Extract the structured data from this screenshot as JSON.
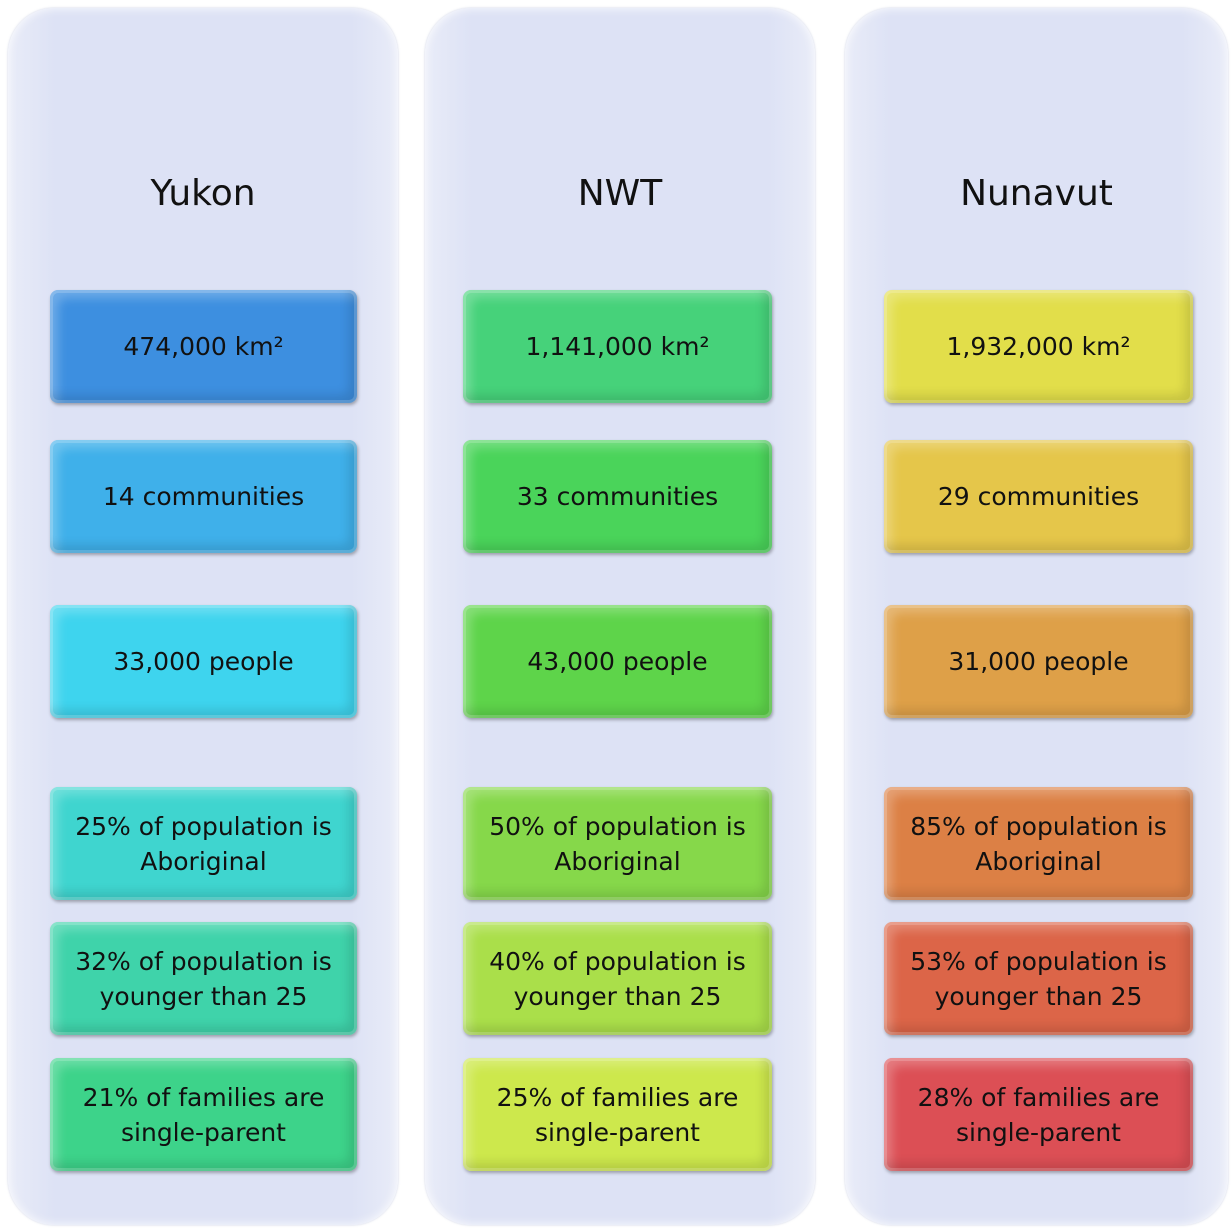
{
  "columns": [
    {
      "title": "Yukon",
      "boxes": [
        [
          "474,000 km²"
        ],
        [
          "14 communities"
        ],
        [
          "33,000 people"
        ],
        [
          "25% of population is",
          "Aboriginal"
        ],
        [
          "32% of population is",
          "younger than 25"
        ],
        [
          "21% of families are",
          "single-parent"
        ]
      ]
    },
    {
      "title": "NWT",
      "boxes": [
        [
          "1,141,000 km²"
        ],
        [
          "33 communities"
        ],
        [
          "43,000 people"
        ],
        [
          "50% of population is",
          "Aboriginal"
        ],
        [
          "40% of population is",
          "younger than 25"
        ],
        [
          "25% of families are",
          "single-parent"
        ]
      ]
    },
    {
      "title": "Nunavut",
      "boxes": [
        [
          "1,932,000 km²"
        ],
        [
          "29 communities"
        ],
        [
          "31,000 people"
        ],
        [
          "85% of population is",
          "Aboriginal"
        ],
        [
          "53% of population is",
          "younger than 25"
        ],
        [
          "28% of families are",
          "single-parent"
        ]
      ]
    }
  ]
}
